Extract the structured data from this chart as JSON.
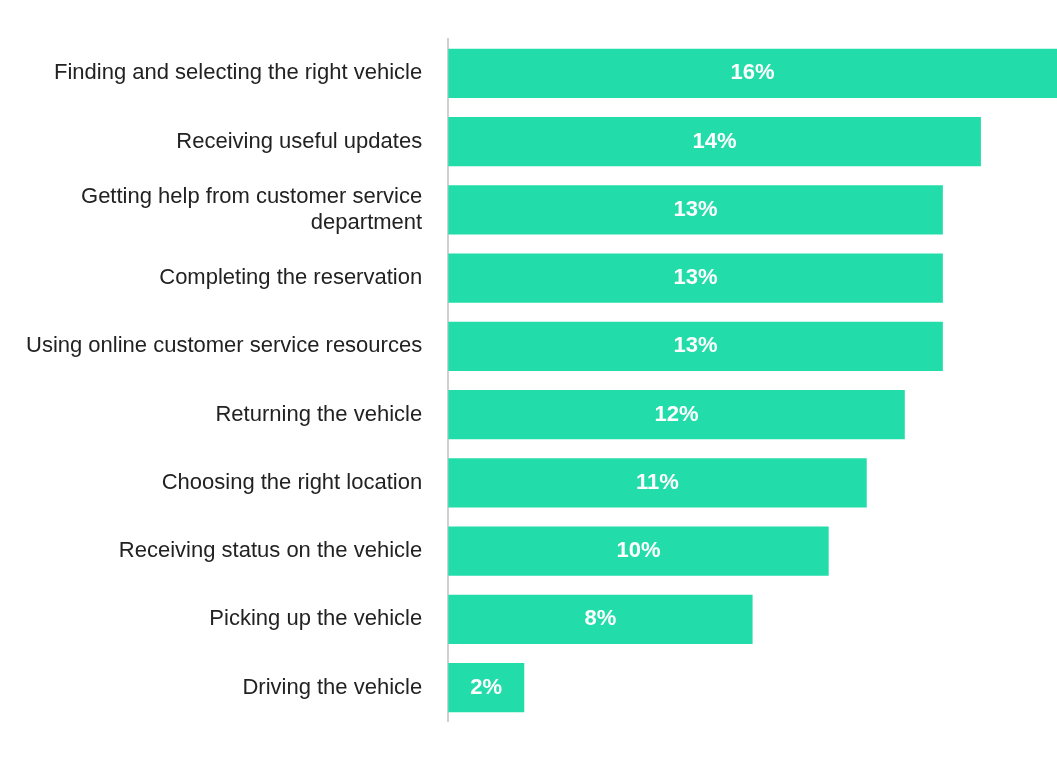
{
  "chart_data": {
    "type": "bar",
    "orientation": "horizontal",
    "categories": [
      "Finding and selecting the right vehicle",
      "Receiving useful updates",
      "Getting help from customer service department",
      "Completing the reservation",
      "Using online customer service resources",
      "Returning the vehicle",
      "Choosing the right location",
      "Receiving status on the vehicle",
      "Picking up the vehicle",
      "Driving the vehicle"
    ],
    "values": [
      16,
      14,
      13,
      13,
      13,
      12,
      11,
      10,
      8,
      2
    ],
    "value_labels": [
      "16%",
      "14%",
      "13%",
      "13%",
      "13%",
      "12%",
      "11%",
      "10%",
      "8%",
      "2%"
    ],
    "color": "#22dcaa"
  }
}
